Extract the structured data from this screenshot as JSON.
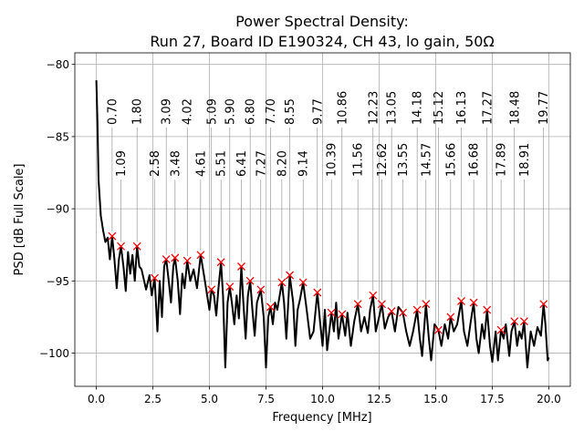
{
  "chart_data": {
    "type": "line",
    "title": "Power Spectral Density:",
    "subtitle": "Run 27, Board ID E190324, CH 43, lo gain, 50Ω",
    "xlabel": "Frequency [MHz]",
    "ylabel": "PSD [dB Full Scale]",
    "xlim": [
      -0.95,
      20.95
    ],
    "ylim": [
      -102.3,
      -79.2
    ],
    "xticks": [
      0.0,
      2.5,
      5.0,
      7.5,
      10.0,
      12.5,
      15.0,
      17.5,
      20.0
    ],
    "xtick_labels": [
      "0.0",
      "2.5",
      "5.0",
      "7.5",
      "10.0",
      "12.5",
      "15.0",
      "17.5",
      "20.0"
    ],
    "yticks": [
      -80,
      -85,
      -90,
      -95,
      -100
    ],
    "ytick_labels": [
      "−80",
      "−85",
      "−90",
      "−95",
      "−100"
    ],
    "grid": true,
    "line_color": "#000000",
    "marker_color": "#ff0000",
    "series": [
      {
        "x": [
          0,
          0.05,
          0.1,
          0.2,
          0.3,
          0.4,
          0.5,
          0.6,
          0.7,
          0.8,
          0.9,
          1.0,
          1.09,
          1.2,
          1.3,
          1.4,
          1.5,
          1.6,
          1.7,
          1.8,
          1.9,
          2.0,
          2.2,
          2.35,
          2.45,
          2.58,
          2.7,
          2.8,
          2.9,
          3.0,
          3.09,
          3.2,
          3.3,
          3.4,
          3.48,
          3.6,
          3.7,
          3.8,
          3.9,
          4.02,
          4.15,
          4.3,
          4.45,
          4.61,
          4.75,
          4.9,
          5.0,
          5.09,
          5.2,
          5.3,
          5.4,
          5.51,
          5.6,
          5.7,
          5.8,
          5.9,
          6.0,
          6.1,
          6.2,
          6.3,
          6.41,
          6.5,
          6.6,
          6.7,
          6.8,
          6.9,
          7.0,
          7.1,
          7.27,
          7.4,
          7.5,
          7.6,
          7.7,
          7.8,
          7.9,
          8.0,
          8.2,
          8.3,
          8.4,
          8.55,
          8.7,
          8.8,
          8.9,
          9.0,
          9.14,
          9.3,
          9.45,
          9.6,
          9.77,
          9.9,
          10.0,
          10.1,
          10.2,
          10.39,
          10.5,
          10.6,
          10.7,
          10.86,
          11.0,
          11.1,
          11.25,
          11.4,
          11.56,
          11.7,
          11.85,
          12.0,
          12.1,
          12.23,
          12.35,
          12.5,
          12.62,
          12.75,
          12.9,
          13.05,
          13.2,
          13.35,
          13.55,
          13.7,
          13.85,
          14.0,
          14.18,
          14.3,
          14.4,
          14.57,
          14.7,
          14.8,
          14.95,
          15.12,
          15.25,
          15.4,
          15.55,
          15.66,
          15.8,
          15.95,
          16.13,
          16.25,
          16.4,
          16.55,
          16.68,
          16.8,
          16.9,
          17.05,
          17.15,
          17.27,
          17.4,
          17.5,
          17.65,
          17.75,
          17.89,
          18.0,
          18.1,
          18.25,
          18.35,
          18.48,
          18.6,
          18.7,
          18.8,
          18.91,
          19.05,
          19.2,
          19.35,
          19.5,
          19.65,
          19.77,
          19.85,
          19.95,
          20.0
        ],
        "y": [
          -81.1,
          -84,
          -88,
          -90.5,
          -91.5,
          -92.3,
          -92.0,
          -93.5,
          -91.9,
          -93.5,
          -95.5,
          -93.5,
          -92.6,
          -94,
          -95.7,
          -93,
          -94.5,
          -93.2,
          -95,
          -92.6,
          -94,
          -94.2,
          -95.6,
          -94.6,
          -96,
          -94.8,
          -98.5,
          -95,
          -97.5,
          -94,
          -93.5,
          -95,
          -96.5,
          -94,
          -93.4,
          -95,
          -97.3,
          -94.5,
          -95.5,
          -93.6,
          -95,
          -94.2,
          -95.5,
          -93.2,
          -94.5,
          -96,
          -97,
          -95.6,
          -96,
          -97.4,
          -95.5,
          -93.7,
          -96,
          -101,
          -96.5,
          -95.4,
          -96.6,
          -98,
          -96,
          -97.6,
          -94,
          -96.5,
          -99,
          -96,
          -95,
          -97,
          -98.8,
          -96.5,
          -95.6,
          -97.5,
          -101,
          -97.5,
          -96.8,
          -98,
          -96.5,
          -97,
          -95.1,
          -96.5,
          -99,
          -94.6,
          -96.5,
          -99.5,
          -97,
          -96.3,
          -95.1,
          -97,
          -99,
          -98.5,
          -95.8,
          -98,
          -99.5,
          -97,
          -99.8,
          -97.2,
          -98.5,
          -96.5,
          -99,
          -97.3,
          -98.8,
          -97.2,
          -99.5,
          -97.8,
          -96.6,
          -98.5,
          -97.5,
          -98.6,
          -97,
          -96.0,
          -98.5,
          -97.5,
          -96.6,
          -98.3,
          -97.5,
          -97.1,
          -98.5,
          -96.8,
          -97.2,
          -98.5,
          -99.5,
          -98.5,
          -97.0,
          -99,
          -100.2,
          -96.6,
          -99,
          -100.5,
          -98,
          -98.4,
          -99.5,
          -98,
          -99,
          -97.5,
          -98.5,
          -98,
          -96.4,
          -98.5,
          -99.5,
          -97.8,
          -96.5,
          -99,
          -100,
          -98,
          -99,
          -97.0,
          -99.5,
          -100.6,
          -98.5,
          -100.5,
          -98.4,
          -99,
          -98,
          -100.2,
          -98.5,
          -97.8,
          -99.5,
          -98.5,
          -99,
          -97.8,
          -101,
          -98.5,
          -99.5,
          -98.2,
          -98.8,
          -96.6,
          -98,
          -100.5,
          -100.3
        ]
      }
    ],
    "peaks": {
      "x": [
        0.7,
        1.09,
        1.8,
        2.58,
        3.09,
        3.48,
        4.02,
        4.61,
        5.09,
        5.51,
        5.9,
        6.41,
        6.8,
        7.27,
        7.7,
        8.2,
        8.55,
        9.14,
        9.77,
        10.39,
        10.86,
        11.56,
        12.23,
        12.62,
        13.05,
        13.55,
        14.18,
        14.57,
        15.12,
        15.66,
        16.13,
        16.68,
        17.27,
        17.89,
        18.48,
        18.91,
        19.77
      ],
      "y": [
        -91.9,
        -92.6,
        -92.6,
        -94.8,
        -93.5,
        -93.4,
        -93.6,
        -93.2,
        -95.6,
        -93.7,
        -95.4,
        -94.0,
        -95.0,
        -95.6,
        -96.8,
        -95.1,
        -94.6,
        -95.1,
        -95.8,
        -97.2,
        -97.3,
        -96.6,
        -96.0,
        -96.6,
        -97.1,
        -97.2,
        -97.0,
        -96.6,
        -98.4,
        -97.5,
        -96.4,
        -96.5,
        -97.0,
        -98.4,
        -97.8,
        -97.8,
        -96.6
      ],
      "labels": [
        "0.70",
        "1.09",
        "1.80",
        "2.58",
        "3.09",
        "3.48",
        "4.02",
        "4.61",
        "5.09",
        "5.51",
        "5.90",
        "6.41",
        "6.80",
        "7.27",
        "7.70",
        "8.20",
        "8.55",
        "9.14",
        "9.77",
        "10.39",
        "10.86",
        "11.56",
        "12.23",
        "12.62",
        "13.05",
        "13.55",
        "14.18",
        "14.57",
        "15.12",
        "15.66",
        "16.13",
        "16.68",
        "17.27",
        "17.89",
        "18.48",
        "18.91",
        "19.77"
      ]
    }
  }
}
